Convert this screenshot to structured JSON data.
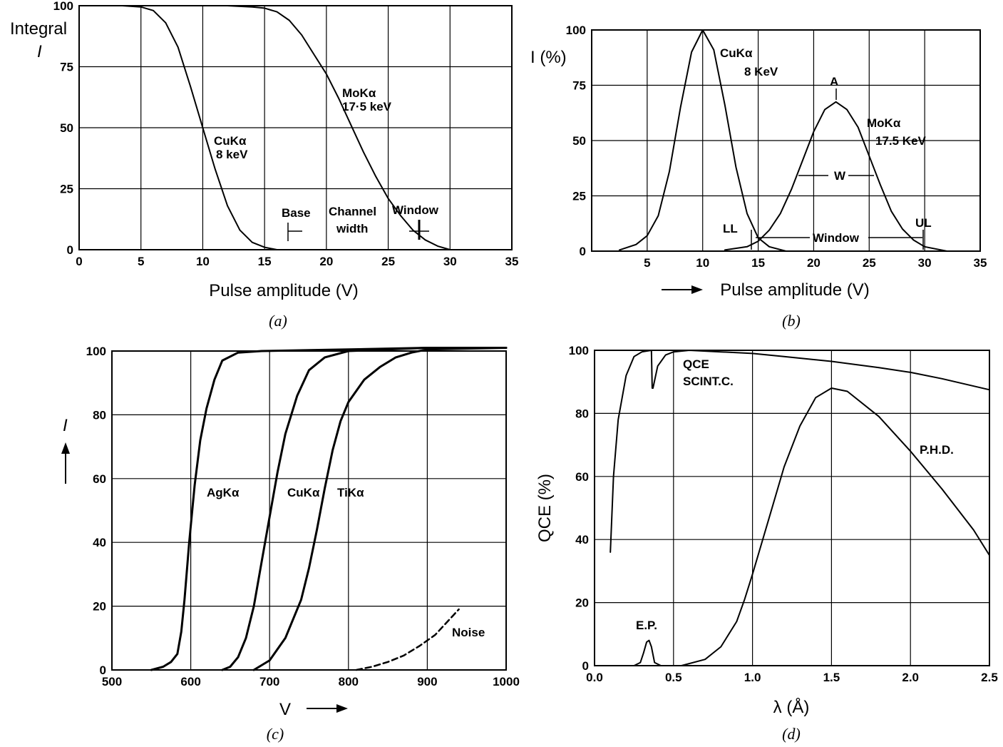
{
  "chart_data": [
    {
      "type": "line",
      "panel_label": "(a)",
      "xlabel": "Pulse amplitude (V)",
      "ylabel_top": "Integral",
      "ylabel": "I",
      "xlim": [
        0,
        35
      ],
      "ylim": [
        0,
        100
      ],
      "xticks": [
        "0",
        "5",
        "10",
        "15",
        "20",
        "25",
        "30",
        "35"
      ],
      "yticks": [
        "0",
        "25",
        "50",
        "75",
        "100"
      ],
      "grid": true,
      "series": [
        {
          "name": "CuKα 8 keV",
          "x": [
            3.5,
            5,
            6,
            7,
            8,
            9,
            10,
            11,
            12,
            13,
            14,
            15,
            16
          ],
          "y": [
            100,
            99.5,
            98,
            93,
            83,
            67,
            50,
            33,
            18,
            8,
            3,
            1,
            0
          ]
        },
        {
          "name": "MoKα 17·5 keV",
          "x": [
            12,
            14,
            15,
            16,
            17,
            18,
            19,
            20,
            21,
            22,
            23,
            24,
            25,
            26,
            27,
            28,
            29,
            30
          ],
          "y": [
            100,
            99.5,
            99,
            97.5,
            94,
            88,
            80,
            72,
            62,
            51,
            40,
            30,
            21,
            14,
            8,
            4,
            1.5,
            0
          ]
        }
      ],
      "annotations": {
        "cu": [
          "CuKα",
          "8 keV"
        ],
        "mo": [
          "MoKα",
          "17·5 keV"
        ],
        "base": "Base",
        "channel": [
          "Channel",
          "width"
        ],
        "window": "Window"
      }
    },
    {
      "type": "line",
      "panel_label": "(b)",
      "xlabel": "Pulse amplitude (V)",
      "ylabel": "I (%)",
      "xlim": [
        0,
        35
      ],
      "ylim": [
        0,
        100
      ],
      "xticks": [
        "5",
        "10",
        "15",
        "20",
        "25",
        "30",
        "35"
      ],
      "yticks": [
        "0",
        "25",
        "50",
        "75",
        "100"
      ],
      "grid": true,
      "series": [
        {
          "name": "CuKα 8 KeV",
          "x": [
            2.5,
            4,
            5,
            6,
            7,
            8,
            9,
            10,
            11,
            12,
            13,
            14,
            15,
            16,
            17.5
          ],
          "y": [
            0.5,
            3,
            7,
            16,
            36,
            65,
            90,
            100,
            91,
            66,
            38,
            17,
            6,
            2,
            0
          ]
        },
        {
          "name": "MoKα 17.5 KeV",
          "x": [
            12,
            14,
            15,
            16,
            17,
            18,
            19,
            20,
            21,
            22,
            23,
            24,
            25,
            26,
            27,
            28,
            29,
            30,
            32
          ],
          "y": [
            0.5,
            2,
            4.5,
            9.5,
            17,
            28,
            41,
            54,
            64,
            67.5,
            64,
            56,
            43,
            30,
            18,
            10,
            5,
            2,
            0
          ]
        }
      ],
      "annotations": {
        "cu": [
          "CuKα",
          "8 KeV"
        ],
        "mo": [
          "MoKα",
          "17.5 KeV"
        ],
        "a": "A",
        "w": "W",
        "ll": "LL",
        "ul": "UL",
        "window": "Window"
      }
    },
    {
      "type": "line",
      "panel_label": "(c)",
      "xlabel": "V",
      "ylabel": "I",
      "xlim": [
        500,
        1000
      ],
      "ylim": [
        0,
        100
      ],
      "xticks": [
        "500",
        "600",
        "700",
        "800",
        "900",
        "1000"
      ],
      "yticks": [
        "0",
        "20",
        "40",
        "60",
        "80",
        "100"
      ],
      "grid": true,
      "series": [
        {
          "name": "AgKα",
          "x": [
            550,
            565,
            575,
            583,
            588,
            592,
            598,
            605,
            612,
            620,
            630,
            640,
            660,
            690,
            750,
            800,
            900,
            1000
          ],
          "y": [
            0,
            1,
            2.5,
            5,
            12,
            22,
            40,
            58,
            72,
            82,
            91,
            97,
            99.5,
            100,
            100.3,
            100.5,
            101,
            101
          ]
        },
        {
          "name": "CuKα",
          "x": [
            640,
            650,
            660,
            670,
            680,
            690,
            700,
            710,
            720,
            735,
            750,
            770,
            800,
            850,
            900,
            1000
          ],
          "y": [
            0,
            1,
            4,
            10,
            20,
            34,
            48,
            62,
            74,
            86,
            94,
            98,
            100,
            100.5,
            101,
            101
          ]
        },
        {
          "name": "TiKα",
          "x": [
            680,
            700,
            720,
            740,
            750,
            760,
            770,
            780,
            790,
            800,
            820,
            840,
            860,
            880,
            900,
            1000
          ],
          "y": [
            0,
            3,
            10,
            22,
            32,
            44,
            57,
            69,
            78,
            84,
            91,
            95,
            98,
            99.5,
            100.5,
            101
          ]
        },
        {
          "name": "Noise",
          "x": [
            810,
            830,
            850,
            870,
            890,
            910,
            925,
            940
          ],
          "y": [
            0,
            1,
            2.5,
            4.5,
            7.5,
            11,
            15,
            19
          ]
        }
      ],
      "annotations": {
        "ag": "AgKα",
        "cu": "CuKα",
        "ti": "TiKα",
        "noise": "Noise"
      }
    },
    {
      "type": "line",
      "panel_label": "(d)",
      "xlabel": "λ (Å)",
      "ylabel": "QCE (%)",
      "xlim": [
        0,
        2.5
      ],
      "ylim": [
        0,
        100
      ],
      "xticks": [
        "0.0",
        "0.5",
        "1.0",
        "1.5",
        "2.0",
        "2.5"
      ],
      "yticks": [
        "0",
        "20",
        "40",
        "60",
        "80",
        "100"
      ],
      "grid": true,
      "series": [
        {
          "name": "QCE SCINT.C.",
          "x": [
            0.1,
            0.12,
            0.15,
            0.2,
            0.25,
            0.3,
            0.36,
            0.365,
            0.37,
            0.4,
            0.45,
            0.5,
            0.6,
            0.8,
            1.0,
            1.2,
            1.5,
            1.8,
            2.0,
            2.2,
            2.5
          ],
          "y": [
            36,
            60,
            78,
            92,
            98,
            99.5,
            100,
            88,
            88,
            95,
            98.5,
            99.5,
            100,
            99.5,
            99,
            98,
            96.5,
            94.5,
            93,
            91,
            87.5
          ]
        },
        {
          "name": "P.H.D.",
          "x": [
            0.55,
            0.7,
            0.8,
            0.9,
            0.95,
            1.0,
            1.1,
            1.2,
            1.3,
            1.4,
            1.5,
            1.6,
            1.8,
            2.0,
            2.2,
            2.4,
            2.5
          ],
          "y": [
            0,
            2,
            6,
            14,
            21,
            29,
            46,
            63,
            76,
            85,
            88,
            87,
            79,
            68,
            56,
            43,
            35
          ]
        },
        {
          "name": "E.P.",
          "x": [
            0.25,
            0.29,
            0.31,
            0.33,
            0.345,
            0.36,
            0.38,
            0.42
          ],
          "y": [
            0,
            1,
            4,
            7.5,
            8,
            6,
            1,
            0
          ]
        }
      ],
      "annotations": {
        "qce": [
          "QCE",
          "SCINT.C."
        ],
        "phd": "P.H.D.",
        "ep": "E.P."
      }
    }
  ]
}
